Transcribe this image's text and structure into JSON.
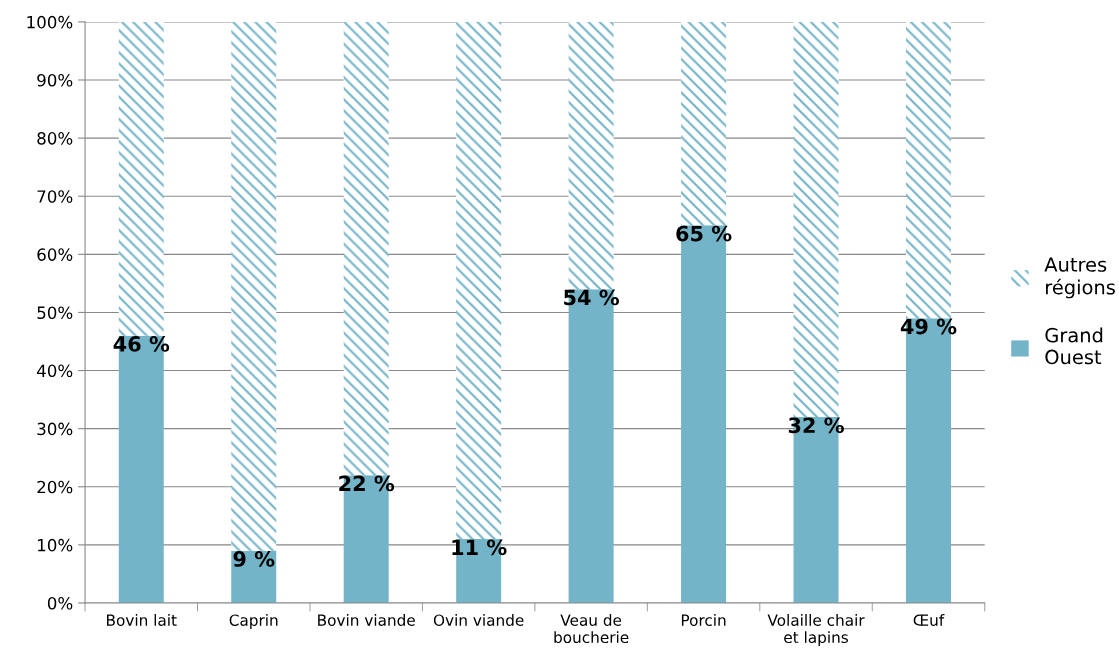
{
  "chart_data": {
    "type": "bar",
    "stacked": true,
    "categories": [
      "Bovin lait",
      "Caprin",
      "Bovin viande",
      "Ovin viande",
      "Veau de\nboucherie",
      "Porcin",
      "Volaille chair\net lapins",
      "Œuf"
    ],
    "series": [
      {
        "name": "Grand\nOuest",
        "color": "#74b4c8",
        "values": [
          46,
          9,
          22,
          11,
          54,
          65,
          32,
          49
        ],
        "value_labels": [
          "46 %",
          "9 %",
          "22 %",
          "11 %",
          "54 %",
          "65 %",
          "32 %",
          "49 %"
        ]
      },
      {
        "name": "Autres\nrégions",
        "color": "#74b4c8",
        "values": [
          54,
          91,
          78,
          89,
          46,
          35,
          68,
          51
        ]
      }
    ],
    "ylim": [
      0,
      100
    ],
    "yticks": [
      {
        "value": 0,
        "label": "0%"
      },
      {
        "value": 10,
        "label": "10%"
      },
      {
        "value": 20,
        "label": "20%"
      },
      {
        "value": 30,
        "label": "30%"
      },
      {
        "value": 40,
        "label": "40%"
      },
      {
        "value": 50,
        "label": "50%"
      },
      {
        "value": 60,
        "label": "60%"
      },
      {
        "value": 70,
        "label": "70%"
      },
      {
        "value": 80,
        "label": "80%"
      },
      {
        "value": 90,
        "label": "90%"
      },
      {
        "value": 100,
        "label": "100%"
      }
    ],
    "grid": "y",
    "legend": "right"
  }
}
